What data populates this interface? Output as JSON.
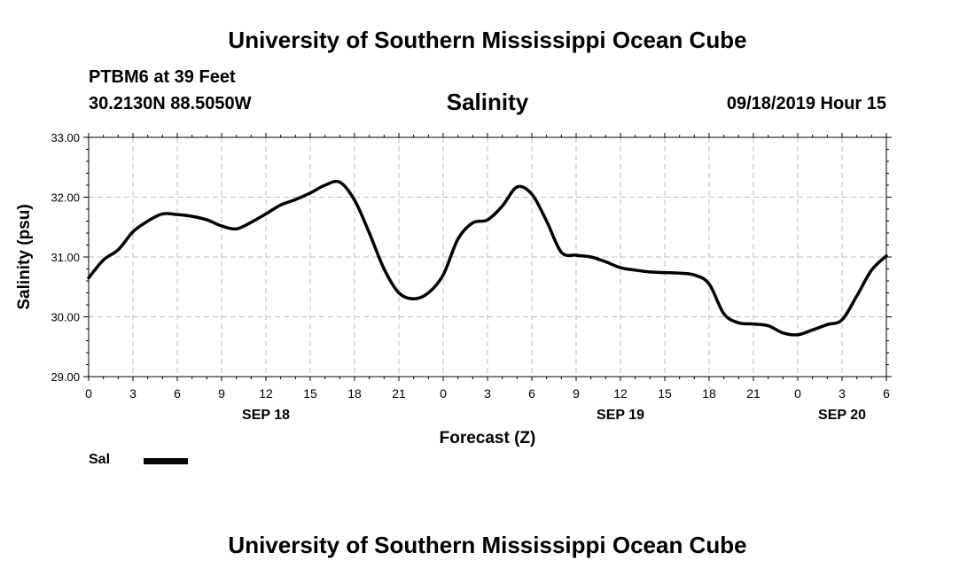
{
  "header": {
    "title_top": "University of Southern Mississippi Ocean Cube",
    "station": "PTBM6 at 39 Feet",
    "location": "30.2130N 88.5050W",
    "timestamp": "09/18/2019 Hour 15",
    "title_bottom": "University of Southern Mississippi Ocean Cube"
  },
  "chart_data": {
    "type": "line",
    "title": "Salinity",
    "xlabel": "Forecast (Z)",
    "ylabel": "Salinity (psu)",
    "ylim": [
      29.0,
      33.0
    ],
    "yticks": [
      "29.00",
      "30.00",
      "31.00",
      "32.00",
      "33.00"
    ],
    "xlim": [
      0,
      54
    ],
    "x_tick_labels": [
      "0",
      "3",
      "6",
      "9",
      "12",
      "15",
      "18",
      "21",
      "0",
      "3",
      "6",
      "9",
      "12",
      "15",
      "18",
      "21",
      "0",
      "3",
      "6"
    ],
    "date_labels": [
      {
        "label": "SEP 18",
        "hour": 12
      },
      {
        "label": "SEP 19",
        "hour": 36
      },
      {
        "label": "SEP 20",
        "hour": 51
      }
    ],
    "grid": true,
    "series": [
      {
        "name": "Sal",
        "x": [
          0,
          1,
          2,
          3,
          4,
          5,
          6,
          7,
          8,
          9,
          10,
          11,
          12,
          13,
          14,
          15,
          16,
          17,
          18,
          19,
          20,
          21,
          22,
          23,
          24,
          25,
          26,
          27,
          28,
          29,
          30,
          31,
          32,
          33,
          34,
          35,
          36,
          37,
          38,
          39,
          40,
          41,
          42,
          43,
          44,
          45,
          46,
          47,
          48,
          49,
          50,
          51,
          52,
          53,
          54
        ],
        "values": [
          30.65,
          30.95,
          31.12,
          31.42,
          31.6,
          31.72,
          31.71,
          31.68,
          31.62,
          31.52,
          31.47,
          31.58,
          31.72,
          31.87,
          31.96,
          32.07,
          32.2,
          32.25,
          31.95,
          31.4,
          30.8,
          30.4,
          30.3,
          30.4,
          30.7,
          31.3,
          31.57,
          31.62,
          31.85,
          32.17,
          32.05,
          31.6,
          31.08,
          31.03,
          31.0,
          30.92,
          30.82,
          30.78,
          30.75,
          30.74,
          30.73,
          30.7,
          30.55,
          30.05,
          29.9,
          29.88,
          29.85,
          29.73,
          29.7,
          29.78,
          29.87,
          29.95,
          30.35,
          30.78,
          31.02
        ]
      }
    ],
    "legend": "bottom-left"
  }
}
